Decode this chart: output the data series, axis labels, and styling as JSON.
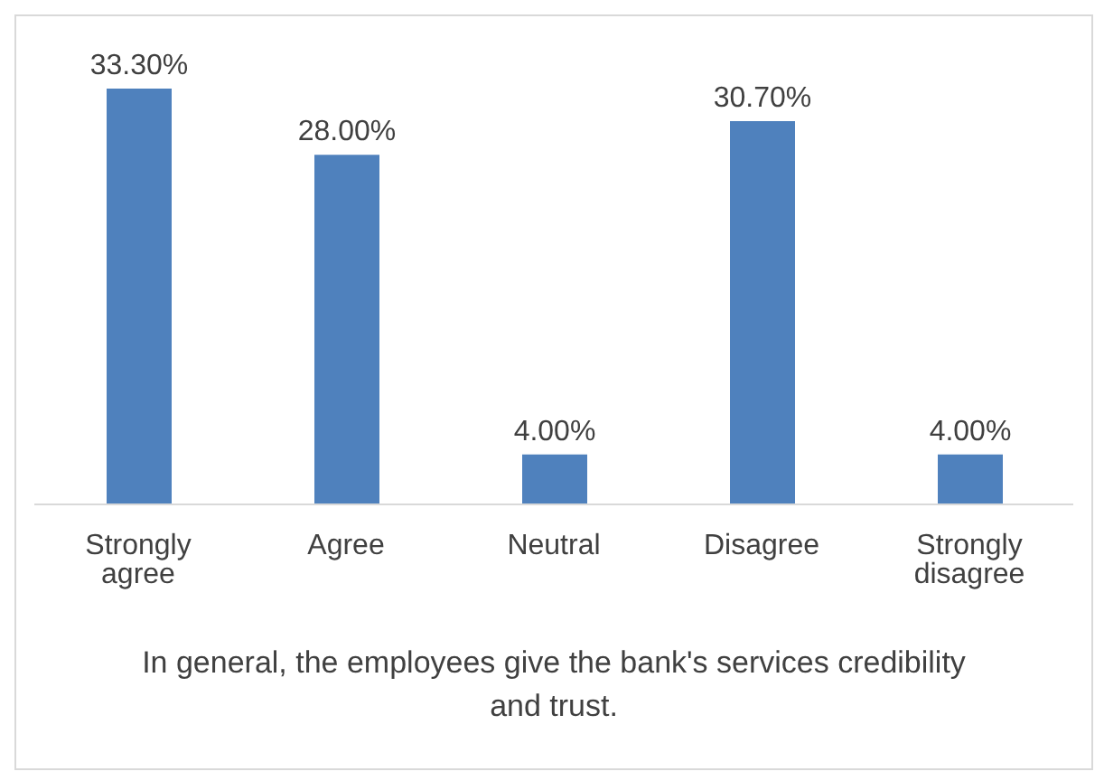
{
  "chart_data": {
    "type": "bar",
    "xlabel": "In general, the employees give the bank's services credibility and trust.",
    "categories": [
      "Strongly agree",
      "Agree",
      "Neutral",
      "Disagree",
      "Strongly disagree"
    ],
    "values": [
      33.3,
      28.0,
      4.0,
      30.7,
      4.0
    ],
    "color": "#4f81bd",
    "value_labels": [
      "33.30%",
      "28.00%",
      "4.00%",
      "30.70%",
      "4.00%"
    ]
  }
}
